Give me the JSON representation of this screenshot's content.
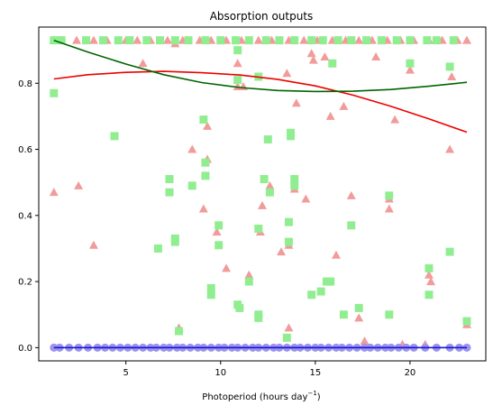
{
  "chart_data": {
    "type": "scatter",
    "title": "Absorption outputs",
    "xlabel": "Photoperiod (hours day",
    "xlabel_sup": "−1",
    "xlabel_close": ")",
    "ylabel": "",
    "xlim": [
      0.4,
      24.0
    ],
    "ylim": [
      -0.04,
      0.97
    ],
    "xticks": [
      5,
      10,
      15,
      20
    ],
    "yticks": [
      0.0,
      0.2,
      0.4,
      0.6,
      0.8
    ],
    "ytick_labels": [
      "0.0",
      "0.2",
      "0.4",
      "0.6",
      "0.8"
    ],
    "grid": false,
    "legend": "none",
    "series": [
      {
        "marker": "triangle",
        "color": "#f29b9b",
        "points": [
          [
            1.2,
            0.93
          ],
          [
            1.5,
            0.93
          ],
          [
            2.4,
            0.93
          ],
          [
            3.3,
            0.93
          ],
          [
            4.0,
            0.93
          ],
          [
            5.0,
            0.93
          ],
          [
            5.6,
            0.93
          ],
          [
            6.3,
            0.93
          ],
          [
            7.2,
            0.93
          ],
          [
            8.0,
            0.93
          ],
          [
            8.9,
            0.93
          ],
          [
            9.5,
            0.93
          ],
          [
            10.3,
            0.93
          ],
          [
            11.1,
            0.93
          ],
          [
            12.0,
            0.93
          ],
          [
            12.7,
            0.93
          ],
          [
            13.6,
            0.93
          ],
          [
            14.4,
            0.93
          ],
          [
            15.1,
            0.93
          ],
          [
            15.9,
            0.93
          ],
          [
            16.6,
            0.93
          ],
          [
            17.3,
            0.93
          ],
          [
            18.0,
            0.93
          ],
          [
            18.8,
            0.93
          ],
          [
            19.5,
            0.93
          ],
          [
            20.2,
            0.93
          ],
          [
            21.0,
            0.93
          ],
          [
            21.7,
            0.93
          ],
          [
            22.5,
            0.93
          ],
          [
            23.0,
            0.93
          ],
          [
            1.2,
            0.47
          ],
          [
            2.5,
            0.49
          ],
          [
            3.3,
            0.31
          ],
          [
            5.9,
            0.86
          ],
          [
            7.6,
            0.92
          ],
          [
            7.8,
            0.06
          ],
          [
            8.5,
            0.6
          ],
          [
            9.1,
            0.42
          ],
          [
            9.3,
            0.57
          ],
          [
            9.3,
            0.67
          ],
          [
            9.8,
            0.35
          ],
          [
            10.3,
            0.24
          ],
          [
            10.9,
            0.86
          ],
          [
            10.9,
            0.79
          ],
          [
            11.0,
            0.13
          ],
          [
            11.2,
            0.79
          ],
          [
            11.5,
            0.22
          ],
          [
            12.1,
            0.35
          ],
          [
            12.2,
            0.43
          ],
          [
            12.6,
            0.49
          ],
          [
            13.2,
            0.29
          ],
          [
            13.5,
            0.83
          ],
          [
            13.6,
            0.31
          ],
          [
            13.6,
            0.06
          ],
          [
            13.9,
            0.48
          ],
          [
            14.0,
            0.74
          ],
          [
            14.5,
            0.45
          ],
          [
            14.8,
            0.89
          ],
          [
            14.9,
            0.87
          ],
          [
            15.5,
            0.88
          ],
          [
            15.8,
            0.7
          ],
          [
            16.1,
            0.28
          ],
          [
            16.5,
            0.73
          ],
          [
            16.9,
            0.46
          ],
          [
            17.3,
            0.09
          ],
          [
            17.6,
            0.02
          ],
          [
            18.2,
            0.88
          ],
          [
            18.9,
            0.45
          ],
          [
            18.9,
            0.42
          ],
          [
            19.2,
            0.69
          ],
          [
            19.6,
            0.01
          ],
          [
            20.0,
            0.84
          ],
          [
            20.8,
            0.01
          ],
          [
            21.0,
            0.22
          ],
          [
            21.1,
            0.2
          ],
          [
            22.1,
            0.6
          ],
          [
            22.2,
            0.82
          ],
          [
            23.0,
            0.07
          ]
        ]
      },
      {
        "marker": "square",
        "color": "#90ee90",
        "points": [
          [
            1.2,
            0.93
          ],
          [
            1.6,
            0.93
          ],
          [
            2.9,
            0.93
          ],
          [
            3.8,
            0.93
          ],
          [
            4.6,
            0.93
          ],
          [
            5.2,
            0.93
          ],
          [
            6.1,
            0.93
          ],
          [
            6.8,
            0.93
          ],
          [
            7.6,
            0.93
          ],
          [
            8.3,
            0.93
          ],
          [
            9.2,
            0.93
          ],
          [
            10.0,
            0.93
          ],
          [
            10.8,
            0.93
          ],
          [
            11.5,
            0.93
          ],
          [
            12.4,
            0.93
          ],
          [
            13.1,
            0.93
          ],
          [
            13.9,
            0.93
          ],
          [
            14.8,
            0.93
          ],
          [
            15.4,
            0.93
          ],
          [
            16.2,
            0.93
          ],
          [
            16.9,
            0.93
          ],
          [
            17.7,
            0.93
          ],
          [
            18.5,
            0.93
          ],
          [
            19.3,
            0.93
          ],
          [
            20.0,
            0.93
          ],
          [
            20.9,
            0.93
          ],
          [
            21.4,
            0.93
          ],
          [
            22.3,
            0.93
          ],
          [
            1.2,
            0.77
          ],
          [
            4.4,
            0.64
          ],
          [
            6.7,
            0.3
          ],
          [
            7.3,
            0.51
          ],
          [
            7.3,
            0.47
          ],
          [
            7.6,
            0.33
          ],
          [
            7.6,
            0.32
          ],
          [
            7.8,
            0.05
          ],
          [
            8.5,
            0.49
          ],
          [
            9.1,
            0.69
          ],
          [
            9.2,
            0.52
          ],
          [
            9.2,
            0.56
          ],
          [
            9.5,
            0.18
          ],
          [
            9.5,
            0.16
          ],
          [
            9.9,
            0.37
          ],
          [
            9.9,
            0.31
          ],
          [
            10.9,
            0.9
          ],
          [
            10.9,
            0.81
          ],
          [
            10.9,
            0.13
          ],
          [
            11.0,
            0.12
          ],
          [
            11.5,
            0.2
          ],
          [
            12.0,
            0.82
          ],
          [
            12.0,
            0.36
          ],
          [
            12.0,
            0.1
          ],
          [
            12.0,
            0.09
          ],
          [
            12.3,
            0.51
          ],
          [
            12.5,
            0.63
          ],
          [
            12.6,
            0.47
          ],
          [
            13.6,
            0.38
          ],
          [
            13.6,
            0.32
          ],
          [
            13.5,
            0.03
          ],
          [
            13.7,
            0.65
          ],
          [
            13.7,
            0.64
          ],
          [
            13.9,
            0.51
          ],
          [
            13.9,
            0.49
          ],
          [
            14.8,
            0.16
          ],
          [
            15.3,
            0.17
          ],
          [
            15.6,
            0.2
          ],
          [
            15.8,
            0.2
          ],
          [
            15.9,
            0.86
          ],
          [
            16.5,
            0.1
          ],
          [
            16.9,
            0.37
          ],
          [
            17.3,
            0.12
          ],
          [
            18.9,
            0.46
          ],
          [
            18.9,
            0.1
          ],
          [
            20.0,
            0.86
          ],
          [
            21.0,
            0.24
          ],
          [
            21.0,
            0.16
          ],
          [
            22.1,
            0.85
          ],
          [
            22.1,
            0.29
          ],
          [
            23.0,
            0.08
          ]
        ]
      },
      {
        "marker": "circle",
        "color": "#9b94ee",
        "points": [
          [
            1.2,
            0.0
          ],
          [
            1.5,
            0.0
          ],
          [
            2.0,
            0.0
          ],
          [
            2.5,
            0.0
          ],
          [
            3.0,
            0.0
          ],
          [
            3.5,
            0.0
          ],
          [
            3.9,
            0.0
          ],
          [
            4.3,
            0.0
          ],
          [
            4.7,
            0.0
          ],
          [
            5.1,
            0.0
          ],
          [
            5.5,
            0.0
          ],
          [
            5.9,
            0.0
          ],
          [
            6.3,
            0.0
          ],
          [
            6.6,
            0.0
          ],
          [
            7.0,
            0.0
          ],
          [
            7.3,
            0.0
          ],
          [
            7.7,
            0.0
          ],
          [
            8.0,
            0.0
          ],
          [
            8.4,
            0.0
          ],
          [
            8.8,
            0.0
          ],
          [
            9.1,
            0.0
          ],
          [
            9.5,
            0.0
          ],
          [
            9.9,
            0.0
          ],
          [
            10.2,
            0.0
          ],
          [
            10.6,
            0.0
          ],
          [
            10.9,
            0.0
          ],
          [
            11.3,
            0.0
          ],
          [
            11.7,
            0.0
          ],
          [
            12.0,
            0.0
          ],
          [
            12.4,
            0.0
          ],
          [
            12.8,
            0.0
          ],
          [
            13.1,
            0.0
          ],
          [
            13.5,
            0.0
          ],
          [
            13.9,
            0.0
          ],
          [
            14.2,
            0.0
          ],
          [
            14.6,
            0.0
          ],
          [
            15.0,
            0.0
          ],
          [
            15.3,
            0.0
          ],
          [
            15.7,
            0.0
          ],
          [
            16.1,
            0.0
          ],
          [
            16.4,
            0.0
          ],
          [
            16.8,
            0.0
          ],
          [
            17.2,
            0.0
          ],
          [
            17.6,
            0.0
          ],
          [
            17.9,
            0.0
          ],
          [
            18.3,
            0.0
          ],
          [
            18.7,
            0.0
          ],
          [
            19.0,
            0.0
          ],
          [
            19.4,
            0.0
          ],
          [
            19.8,
            0.0
          ],
          [
            20.2,
            0.0
          ],
          [
            20.8,
            0.0
          ],
          [
            21.4,
            0.0
          ],
          [
            22.1,
            0.0
          ],
          [
            22.6,
            0.0
          ],
          [
            23.0,
            0.0
          ]
        ]
      }
    ],
    "fit_lines": [
      {
        "color": "#ee0000",
        "points": [
          [
            1.2,
            0.813
          ],
          [
            3.0,
            0.826
          ],
          [
            5.0,
            0.833
          ],
          [
            7.0,
            0.836
          ],
          [
            9.0,
            0.832
          ],
          [
            11.0,
            0.825
          ],
          [
            13.0,
            0.812
          ],
          [
            15.0,
            0.792
          ],
          [
            17.0,
            0.764
          ],
          [
            19.0,
            0.73
          ],
          [
            21.0,
            0.692
          ],
          [
            23.0,
            0.652
          ]
        ]
      },
      {
        "color": "#006400",
        "points": [
          [
            1.2,
            0.93
          ],
          [
            3.0,
            0.894
          ],
          [
            5.0,
            0.858
          ],
          [
            7.0,
            0.826
          ],
          [
            9.0,
            0.802
          ],
          [
            11.0,
            0.787
          ],
          [
            13.0,
            0.778
          ],
          [
            15.0,
            0.775
          ],
          [
            17.0,
            0.776
          ],
          [
            19.0,
            0.781
          ],
          [
            21.0,
            0.791
          ],
          [
            23.0,
            0.803
          ]
        ]
      },
      {
        "color": "#1c14d4",
        "points": [
          [
            1.2,
            0.0
          ],
          [
            23.0,
            0.0
          ]
        ]
      }
    ]
  }
}
